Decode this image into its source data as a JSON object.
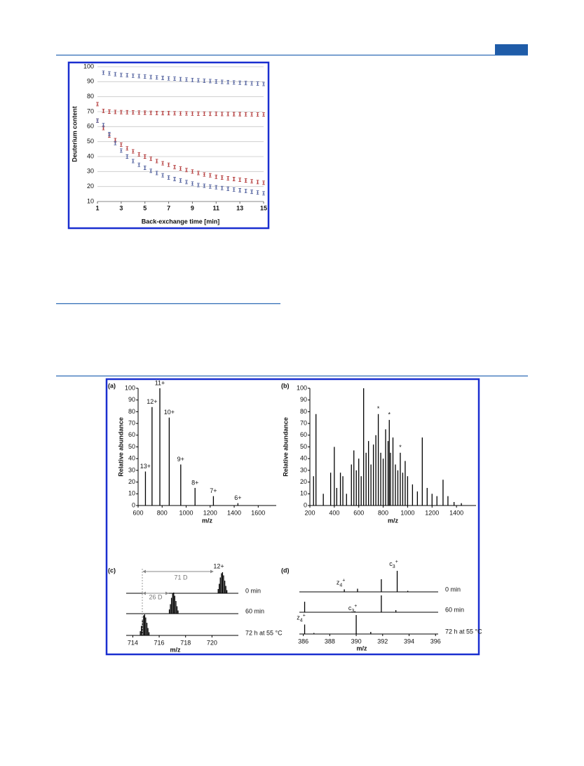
{
  "chart_data": [
    {
      "type": "scatter",
      "ylabel": "Deuterium content",
      "xlabel": "Back-exchange time [min]",
      "x": [
        1,
        1.5,
        2,
        2.5,
        3,
        3.5,
        4,
        4.5,
        5,
        5.5,
        6,
        6.5,
        7,
        7.5,
        8,
        8.5,
        9,
        9.5,
        10,
        10.5,
        11,
        11.5,
        12,
        12.5,
        13,
        13.5,
        14,
        14.5,
        15
      ],
      "series": [
        {
          "color": "#4a5a9a",
          "values": [
            null,
            96,
            95.5,
            95,
            94.5,
            94.3,
            94,
            93.7,
            93.4,
            93.1,
            92.8,
            92.5,
            92.2,
            92,
            91.7,
            91.4,
            91.1,
            90.9,
            90.6,
            90.4,
            90.1,
            89.9,
            89.7,
            89.5,
            89.3,
            89.1,
            88.9,
            88.7,
            88.5
          ]
        },
        {
          "color": "#b03030",
          "values": [
            75,
            70.5,
            70,
            69.8,
            69.7,
            69.6,
            69.5,
            69.4,
            69.3,
            69.2,
            69.1,
            69,
            69,
            68.9,
            68.8,
            68.8,
            68.7,
            68.6,
            68.6,
            68.5,
            68.5,
            68.4,
            68.4,
            68.3,
            68.3,
            68.2,
            68.2,
            68.1,
            68.1
          ]
        },
        {
          "color": "#b03030",
          "values": [
            64,
            59,
            54,
            51,
            48,
            45.5,
            43.5,
            41.5,
            40,
            38.5,
            37,
            35.5,
            34.5,
            33,
            32,
            31,
            30,
            29,
            28,
            27.5,
            26.5,
            26,
            25.5,
            25,
            24.5,
            24,
            23.5,
            23,
            22.5
          ]
        },
        {
          "color": "#4a5a9a",
          "values": [
            64,
            61,
            55,
            49,
            44,
            40,
            37,
            34.5,
            32.5,
            30.5,
            29,
            27.5,
            26,
            25,
            24,
            23,
            22,
            21,
            20.5,
            20,
            19.5,
            19,
            18.5,
            18,
            17.5,
            17,
            16.5,
            16,
            15.5
          ]
        }
      ],
      "xlim": [
        1,
        15
      ],
      "xticks": [
        1,
        3,
        5,
        7,
        9,
        11,
        13,
        15
      ],
      "ylim": [
        10,
        100
      ],
      "yticks": [
        10,
        20,
        30,
        40,
        50,
        60,
        70,
        80,
        90,
        100
      ],
      "grid": true
    },
    {
      "type": "spectrum",
      "panel": "(a)",
      "ylabel": "Relative abundance",
      "xlabel": "m/z",
      "color": "#000000",
      "x": [
        661,
        716,
        781,
        859,
        955,
        1074,
        1227,
        1431
      ],
      "values": [
        29,
        84,
        100,
        75,
        35,
        15,
        8,
        2
      ],
      "peak_labels": [
        "13+",
        "12+",
        "11+",
        "10+",
        "9+",
        "8+",
        "7+",
        "6+"
      ],
      "xlim": [
        600,
        1750
      ],
      "xticks": [
        600,
        800,
        1000,
        1200,
        1400,
        1600
      ],
      "ylim": [
        0,
        100
      ],
      "yticks": [
        0,
        10,
        20,
        30,
        40,
        50,
        60,
        70,
        80,
        90,
        100
      ]
    },
    {
      "type": "spectrum",
      "panel": "(b)",
      "ylabel": "Relative abundance",
      "xlabel": "m/z",
      "color": "#000000",
      "x": [
        230,
        250,
        310,
        370,
        400,
        420,
        450,
        470,
        500,
        540,
        560,
        580,
        600,
        620,
        640,
        660,
        680,
        700,
        720,
        740,
        760,
        780,
        800,
        820,
        840,
        850,
        860,
        880,
        900,
        920,
        940,
        960,
        980,
        1000,
        1040,
        1080,
        1120,
        1160,
        1200,
        1240,
        1290,
        1330,
        1380,
        1440
      ],
      "values": [
        25,
        78,
        10,
        28,
        50,
        15,
        28,
        25,
        10,
        35,
        47,
        30,
        40,
        25,
        100,
        45,
        55,
        35,
        52,
        60,
        78,
        45,
        40,
        65,
        55,
        73,
        45,
        58,
        35,
        30,
        45,
        28,
        38,
        25,
        18,
        12,
        58,
        15,
        10,
        8,
        22,
        8,
        3,
        2
      ],
      "peak_labels": [
        null,
        null,
        null,
        null,
        null,
        null,
        null,
        null,
        null,
        null,
        null,
        null,
        null,
        null,
        null,
        null,
        null,
        null,
        null,
        null,
        "*",
        null,
        null,
        null,
        null,
        "*",
        null,
        null,
        null,
        null,
        "*",
        null,
        null,
        null,
        null,
        null,
        null,
        null,
        null,
        null,
        null,
        null,
        null,
        null
      ],
      "xlim": [
        200,
        1560
      ],
      "xticks": [
        200,
        400,
        600,
        800,
        1000,
        1200,
        1400
      ],
      "ylim": [
        0,
        100
      ],
      "yticks": [
        0,
        10,
        20,
        30,
        40,
        50,
        60,
        70,
        80,
        90,
        100
      ]
    },
    {
      "type": "spectra",
      "panel": "(c)",
      "xlabel": "m/z",
      "color": "#000000",
      "annotations": [
        "12+",
        "71 D",
        "26 D"
      ],
      "series": [
        {
          "name": "0 min",
          "x": [
            720.47,
            720.55,
            720.63,
            720.72,
            720.8,
            720.88,
            720.97,
            721.05,
            721.13
          ],
          "values": [
            20,
            45,
            75,
            95,
            100,
            85,
            60,
            35,
            15
          ]
        },
        {
          "name": "60 min",
          "x": [
            716.77,
            716.85,
            716.93,
            717.02,
            717.1,
            717.18,
            717.27,
            717.35,
            717.43
          ],
          "values": [
            20,
            45,
            75,
            95,
            100,
            85,
            60,
            35,
            15
          ]
        },
        {
          "name": "72 h at 55 °C",
          "x": [
            714.57,
            714.65,
            714.73,
            714.82,
            714.9,
            714.98,
            715.07,
            715.15,
            715.23
          ],
          "values": [
            20,
            45,
            75,
            95,
            100,
            85,
            60,
            35,
            15
          ]
        }
      ],
      "xlim": [
        713.5,
        722
      ],
      "xticks": [
        714,
        716,
        718,
        720
      ],
      "ylim": [
        0,
        100
      ]
    },
    {
      "type": "spectra",
      "panel": "(d)",
      "xlabel": "m/z",
      "color": "#000000",
      "series": [
        {
          "name": "0 min",
          "x": [
            389.1,
            390.1,
            391.9,
            393.1,
            393.9
          ],
          "values": [
            12,
            15,
            60,
            100,
            5
          ],
          "labels": [
            {
              "base": "z",
              "sub": "4",
              "sup": "+"
            },
            null,
            null,
            {
              "base": "c",
              "sub": "3",
              "sup": "+"
            },
            null
          ]
        },
        {
          "name": "60 min",
          "x": [
            386.1,
            389.9,
            391.9,
            393
          ],
          "values": [
            50,
            5,
            80,
            10
          ],
          "labels": [
            null,
            null,
            null,
            null
          ]
        },
        {
          "name": "72 h at 55 °C",
          "x": [
            386.1,
            386.8,
            390,
            391.1
          ],
          "values": [
            45,
            5,
            90,
            10
          ],
          "labels": [
            {
              "base": "z",
              "sub": "4",
              "sup": "+"
            },
            null,
            {
              "base": "c",
              "sub": "3",
              "sup": "+"
            },
            null
          ]
        }
      ],
      "xlim": [
        385.7,
        396.2
      ],
      "xticks": [
        386,
        388,
        390,
        392,
        394,
        396
      ],
      "ylim": [
        0,
        100
      ]
    }
  ]
}
